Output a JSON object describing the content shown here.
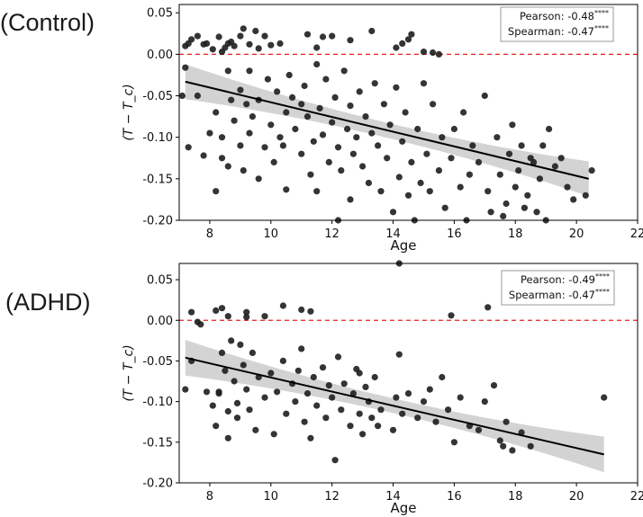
{
  "chart_data": [
    {
      "type": "scatter",
      "group_label": "(Control)",
      "xlabel": "Age",
      "ylabel": "(T − T_c)",
      "xlim": [
        7,
        22
      ],
      "ylim": [
        -0.2,
        0.06
      ],
      "xticks": [
        "8",
        "10",
        "12",
        "14",
        "16",
        "18",
        "20",
        "22"
      ],
      "yticks": [
        "0.05",
        "0.00",
        "-0.05",
        "-0.10",
        "-0.15",
        "-0.20"
      ],
      "reference_line_y": 0.0,
      "legend": {
        "pearson": "Pearson: -0.48",
        "spearman": "Spearman: -0.47",
        "stars": "****"
      },
      "regression": {
        "x0": 7.2,
        "y0": -0.033,
        "x1": 20.4,
        "y1": -0.15
      },
      "points": [
        [
          7.1,
          -0.05
        ],
        [
          7.2,
          0.01
        ],
        [
          7.3,
          0.013
        ],
        [
          7.4,
          0.018
        ],
        [
          7.6,
          0.022
        ],
        [
          7.8,
          0.012
        ],
        [
          7.9,
          0.013
        ],
        [
          8.1,
          0.006
        ],
        [
          8.3,
          0.021
        ],
        [
          8.4,
          0.003
        ],
        [
          8.5,
          0.008
        ],
        [
          8.6,
          0.013
        ],
        [
          8.7,
          0.015
        ],
        [
          8.8,
          0.01
        ],
        [
          9.0,
          0.022
        ],
        [
          9.1,
          0.031
        ],
        [
          9.3,
          0.012
        ],
        [
          9.5,
          0.028
        ],
        [
          9.6,
          0.007
        ],
        [
          9.8,
          0.022
        ],
        [
          10.0,
          0.011
        ],
        [
          10.3,
          0.013
        ],
        [
          11.2,
          0.024
        ],
        [
          11.5,
          0.008
        ],
        [
          11.7,
          0.021
        ],
        [
          12.0,
          0.022
        ],
        [
          12.6,
          0.017
        ],
        [
          13.3,
          0.028
        ],
        [
          14.1,
          0.008
        ],
        [
          14.3,
          0.013
        ],
        [
          14.5,
          0.018
        ],
        [
          14.6,
          0.024
        ],
        [
          15.0,
          0.003
        ],
        [
          15.3,
          0.002
        ],
        [
          15.5,
          0.0
        ],
        [
          7.2,
          -0.016
        ],
        [
          7.3,
          -0.112
        ],
        [
          7.6,
          -0.05
        ],
        [
          7.8,
          -0.122
        ],
        [
          8.0,
          -0.095
        ],
        [
          8.2,
          -0.165
        ],
        [
          8.2,
          -0.07
        ],
        [
          8.4,
          -0.1
        ],
        [
          8.4,
          -0.125
        ],
        [
          8.6,
          -0.02
        ],
        [
          8.6,
          -0.135
        ],
        [
          8.7,
          -0.055
        ],
        [
          8.8,
          -0.08
        ],
        [
          9.0,
          -0.043
        ],
        [
          9.0,
          -0.11
        ],
        [
          9.1,
          -0.14
        ],
        [
          9.2,
          -0.06
        ],
        [
          9.3,
          -0.095
        ],
        [
          9.3,
          -0.02
        ],
        [
          9.4,
          -0.075
        ],
        [
          9.6,
          -0.15
        ],
        [
          9.6,
          -0.055
        ],
        [
          9.8,
          -0.112
        ],
        [
          9.9,
          -0.03
        ],
        [
          10.0,
          -0.085
        ],
        [
          10.1,
          -0.13
        ],
        [
          10.2,
          -0.045
        ],
        [
          10.3,
          -0.1
        ],
        [
          10.4,
          -0.11
        ],
        [
          10.5,
          -0.07
        ],
        [
          10.5,
          -0.163
        ],
        [
          10.6,
          -0.025
        ],
        [
          10.7,
          -0.052
        ],
        [
          10.8,
          -0.09
        ],
        [
          11.0,
          -0.12
        ],
        [
          11.0,
          -0.06
        ],
        [
          11.1,
          -0.038
        ],
        [
          11.2,
          -0.075
        ],
        [
          11.3,
          -0.145
        ],
        [
          11.4,
          -0.105
        ],
        [
          11.5,
          -0.012
        ],
        [
          11.5,
          -0.165
        ],
        [
          11.6,
          -0.065
        ],
        [
          11.7,
          -0.097
        ],
        [
          11.8,
          -0.03
        ],
        [
          11.9,
          -0.13
        ],
        [
          12.0,
          -0.082
        ],
        [
          12.1,
          -0.052
        ],
        [
          12.2,
          -0.112
        ],
        [
          12.3,
          -0.14
        ],
        [
          12.4,
          -0.02
        ],
        [
          12.5,
          -0.09
        ],
        [
          12.6,
          -0.062
        ],
        [
          12.6,
          -0.175
        ],
        [
          12.7,
          -0.12
        ],
        [
          12.8,
          -0.1
        ],
        [
          12.9,
          -0.045
        ],
        [
          13.0,
          -0.135
        ],
        [
          13.1,
          -0.075
        ],
        [
          13.2,
          -0.155
        ],
        [
          13.3,
          -0.095
        ],
        [
          13.4,
          -0.035
        ],
        [
          13.5,
          -0.11
        ],
        [
          13.6,
          -0.165
        ],
        [
          13.7,
          -0.06
        ],
        [
          13.8,
          -0.125
        ],
        [
          13.9,
          -0.085
        ],
        [
          14.0,
          -0.19
        ],
        [
          14.1,
          -0.04
        ],
        [
          14.2,
          -0.148
        ],
        [
          14.3,
          -0.105
        ],
        [
          14.4,
          -0.07
        ],
        [
          14.5,
          -0.17
        ],
        [
          14.6,
          -0.13
        ],
        [
          14.7,
          -0.2
        ],
        [
          14.8,
          -0.09
        ],
        [
          14.9,
          -0.155
        ],
        [
          15.0,
          -0.035
        ],
        [
          15.1,
          -0.12
        ],
        [
          15.2,
          -0.165
        ],
        [
          15.3,
          -0.06
        ],
        [
          15.5,
          -0.14
        ],
        [
          15.6,
          -0.1
        ],
        [
          15.7,
          -0.185
        ],
        [
          15.9,
          -0.125
        ],
        [
          16.0,
          -0.09
        ],
        [
          16.2,
          -0.16
        ],
        [
          16.3,
          -0.07
        ],
        [
          16.5,
          -0.145
        ],
        [
          16.6,
          -0.11
        ],
        [
          16.8,
          -0.13
        ],
        [
          17.0,
          -0.05
        ],
        [
          17.1,
          -0.165
        ],
        [
          17.2,
          -0.19
        ],
        [
          17.4,
          -0.1
        ],
        [
          17.5,
          -0.145
        ],
        [
          17.7,
          -0.18
        ],
        [
          17.8,
          -0.12
        ],
        [
          17.9,
          -0.085
        ],
        [
          18.0,
          -0.16
        ],
        [
          18.1,
          -0.14
        ],
        [
          18.2,
          -0.11
        ],
        [
          18.3,
          -0.185
        ],
        [
          18.4,
          -0.17
        ],
        [
          18.5,
          -0.125
        ],
        [
          18.6,
          -0.13
        ],
        [
          18.7,
          -0.19
        ],
        [
          18.8,
          -0.15
        ],
        [
          18.9,
          -0.11
        ],
        [
          19.0,
          -0.2
        ],
        [
          19.1,
          -0.09
        ],
        [
          19.3,
          -0.135
        ],
        [
          19.5,
          -0.125
        ],
        [
          19.7,
          -0.16
        ],
        [
          19.9,
          -0.175
        ],
        [
          20.3,
          -0.17
        ],
        [
          20.5,
          -0.14
        ],
        [
          16.4,
          -0.2
        ],
        [
          17.6,
          -0.195
        ],
        [
          12.2,
          -0.2
        ]
      ]
    },
    {
      "type": "scatter",
      "group_label": "(ADHD)",
      "xlabel": "Age",
      "ylabel": "(T − T_c)",
      "xlim": [
        7,
        22
      ],
      "ylim": [
        -0.2,
        0.07
      ],
      "xticks": [
        "8",
        "10",
        "12",
        "14",
        "16",
        "18",
        "20",
        "22"
      ],
      "yticks": [
        "0.05",
        "0.00",
        "-0.05",
        "-0.10",
        "-0.15",
        "-0.20"
      ],
      "reference_line_y": 0.0,
      "legend": {
        "pearson": "Pearson: -0.49",
        "spearman": "Spearman: -0.47",
        "stars": "****"
      },
      "regression": {
        "x0": 7.2,
        "y0": -0.046,
        "x1": 20.9,
        "y1": -0.165
      },
      "points": [
        [
          7.2,
          -0.085
        ],
        [
          7.4,
          0.01
        ],
        [
          7.6,
          -0.002
        ],
        [
          7.7,
          -0.005
        ],
        [
          8.2,
          0.012
        ],
        [
          8.4,
          0.015
        ],
        [
          8.6,
          0.005
        ],
        [
          9.2,
          0.01
        ],
        [
          9.2,
          0.004
        ],
        [
          9.8,
          0.005
        ],
        [
          10.4,
          0.018
        ],
        [
          11.0,
          0.013
        ],
        [
          11.3,
          0.011
        ],
        [
          14.2,
          0.07
        ],
        [
          15.9,
          0.006
        ],
        [
          17.1,
          0.016
        ],
        [
          7.4,
          -0.05
        ],
        [
          7.9,
          -0.088
        ],
        [
          8.1,
          -0.105
        ],
        [
          8.2,
          -0.13
        ],
        [
          8.3,
          -0.088
        ],
        [
          8.3,
          -0.09
        ],
        [
          8.4,
          -0.04
        ],
        [
          8.5,
          -0.062
        ],
        [
          8.6,
          -0.112
        ],
        [
          8.6,
          -0.145
        ],
        [
          8.7,
          -0.025
        ],
        [
          8.8,
          -0.075
        ],
        [
          8.9,
          -0.102
        ],
        [
          8.9,
          -0.12
        ],
        [
          9.0,
          -0.03
        ],
        [
          9.1,
          -0.055
        ],
        [
          9.2,
          -0.085
        ],
        [
          9.3,
          -0.11
        ],
        [
          9.4,
          -0.04
        ],
        [
          9.5,
          -0.135
        ],
        [
          9.6,
          -0.07
        ],
        [
          9.8,
          -0.095
        ],
        [
          10.0,
          -0.065
        ],
        [
          10.1,
          -0.14
        ],
        [
          10.2,
          -0.088
        ],
        [
          10.4,
          -0.05
        ],
        [
          10.5,
          -0.115
        ],
        [
          10.7,
          -0.078
        ],
        [
          10.8,
          -0.1
        ],
        [
          10.9,
          -0.062
        ],
        [
          11.0,
          -0.035
        ],
        [
          11.1,
          -0.125
        ],
        [
          11.2,
          -0.09
        ],
        [
          11.3,
          -0.145
        ],
        [
          11.4,
          -0.07
        ],
        [
          11.5,
          -0.105
        ],
        [
          11.7,
          -0.058
        ],
        [
          11.8,
          -0.12
        ],
        [
          11.9,
          -0.08
        ],
        [
          12.0,
          -0.095
        ],
        [
          12.1,
          -0.172
        ],
        [
          12.2,
          -0.045
        ],
        [
          12.3,
          -0.11
        ],
        [
          12.4,
          -0.078
        ],
        [
          12.6,
          -0.13
        ],
        [
          12.7,
          -0.09
        ],
        [
          12.8,
          -0.06
        ],
        [
          12.9,
          -0.115
        ],
        [
          13.0,
          -0.14
        ],
        [
          13.1,
          -0.082
        ],
        [
          13.2,
          -0.1
        ],
        [
          13.3,
          -0.12
        ],
        [
          13.4,
          -0.07
        ],
        [
          13.5,
          -0.13
        ],
        [
          13.6,
          -0.11
        ],
        [
          14.0,
          -0.135
        ],
        [
          14.1,
          -0.095
        ],
        [
          14.2,
          -0.042
        ],
        [
          14.3,
          -0.115
        ],
        [
          14.5,
          -0.09
        ],
        [
          14.8,
          -0.12
        ],
        [
          15.0,
          -0.1
        ],
        [
          15.2,
          -0.085
        ],
        [
          15.4,
          -0.125
        ],
        [
          15.6,
          -0.07
        ],
        [
          15.8,
          -0.11
        ],
        [
          16.0,
          -0.15
        ],
        [
          16.2,
          -0.095
        ],
        [
          16.5,
          -0.13
        ],
        [
          16.8,
          -0.135
        ],
        [
          17.0,
          -0.1
        ],
        [
          17.3,
          -0.08
        ],
        [
          17.5,
          -0.148
        ],
        [
          17.6,
          -0.155
        ],
        [
          17.7,
          -0.125
        ],
        [
          17.9,
          -0.16
        ],
        [
          18.2,
          -0.138
        ],
        [
          18.5,
          -0.155
        ],
        [
          20.9,
          -0.095
        ],
        [
          12.9,
          -0.065
        ]
      ]
    }
  ]
}
